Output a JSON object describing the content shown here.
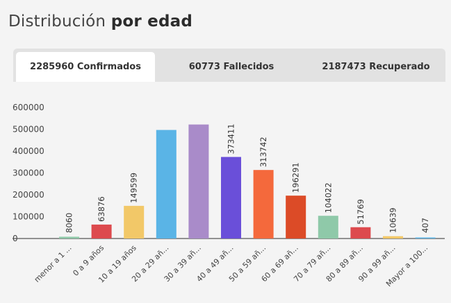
{
  "header": {
    "title_light": "Distribución",
    "title_bold": "por edad"
  },
  "tabs": [
    {
      "label": "2285960 Confirmados",
      "active": true
    },
    {
      "label": "60773 Fallecidos",
      "active": false
    },
    {
      "label": "2187473 Recuperado",
      "active": false
    }
  ],
  "chart_data": {
    "type": "bar",
    "categories": [
      "menor a 1 ...",
      "0 a 9 años",
      "10 a 19 años",
      "20 a 29 añ...",
      "30 a 39 añ...",
      "40 a 49 añ...",
      "50 a 59 añ...",
      "60 a 69 añ...",
      "70 a 79 añ...",
      "80 a 89 añ...",
      "90 a 99 añ...",
      "Mayor a 100..."
    ],
    "values": [
      8060,
      63876,
      149599,
      497000,
      522000,
      373411,
      313742,
      196291,
      104022,
      51769,
      10639,
      407
    ],
    "data_labels": [
      "8060",
      "63876",
      "149599",
      "",
      "",
      "373411",
      "313742",
      "196291",
      "104022",
      "51769",
      "10639",
      "407"
    ],
    "colors": [
      "#8fc9a9",
      "#dd4a4e",
      "#f2c868",
      "#5ab4e6",
      "#a98bc9",
      "#6a4fd9",
      "#f4693c",
      "#dc4b27",
      "#8fc9a9",
      "#dd4a4e",
      "#f2c868",
      "#5ab4e6"
    ],
    "yticks": [
      "600000",
      "500000",
      "400000",
      "300000",
      "200000",
      "100000",
      "0"
    ],
    "ylim": [
      0,
      600000
    ],
    "grid": false
  }
}
